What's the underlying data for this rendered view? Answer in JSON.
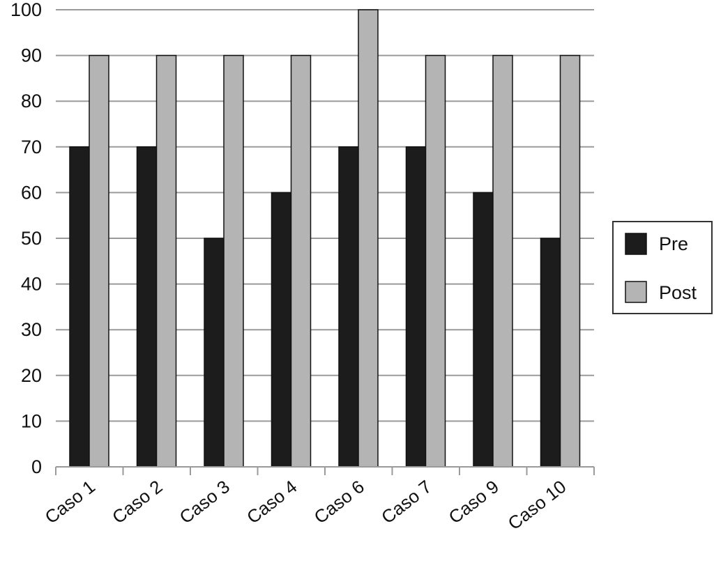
{
  "chart_data": {
    "type": "bar",
    "title": "",
    "xlabel": "",
    "ylabel": "",
    "categories": [
      "Caso 1",
      "Caso 2",
      "Caso 3",
      "Caso 4",
      "Caso 6",
      "Caso 7",
      "Caso 9",
      "Caso 10"
    ],
    "series": [
      {
        "name": "Pre",
        "color": "#1c1c1c",
        "values": [
          70,
          70,
          50,
          60,
          70,
          70,
          60,
          50
        ]
      },
      {
        "name": "Post",
        "color": "#b4b4b4",
        "values": [
          90,
          90,
          90,
          90,
          100,
          90,
          90,
          90
        ]
      }
    ],
    "ylim": [
      0,
      100
    ],
    "yticks": [
      0,
      10,
      20,
      30,
      40,
      50,
      60,
      70,
      80,
      90,
      100
    ],
    "grid": true,
    "legend_position": "right"
  }
}
